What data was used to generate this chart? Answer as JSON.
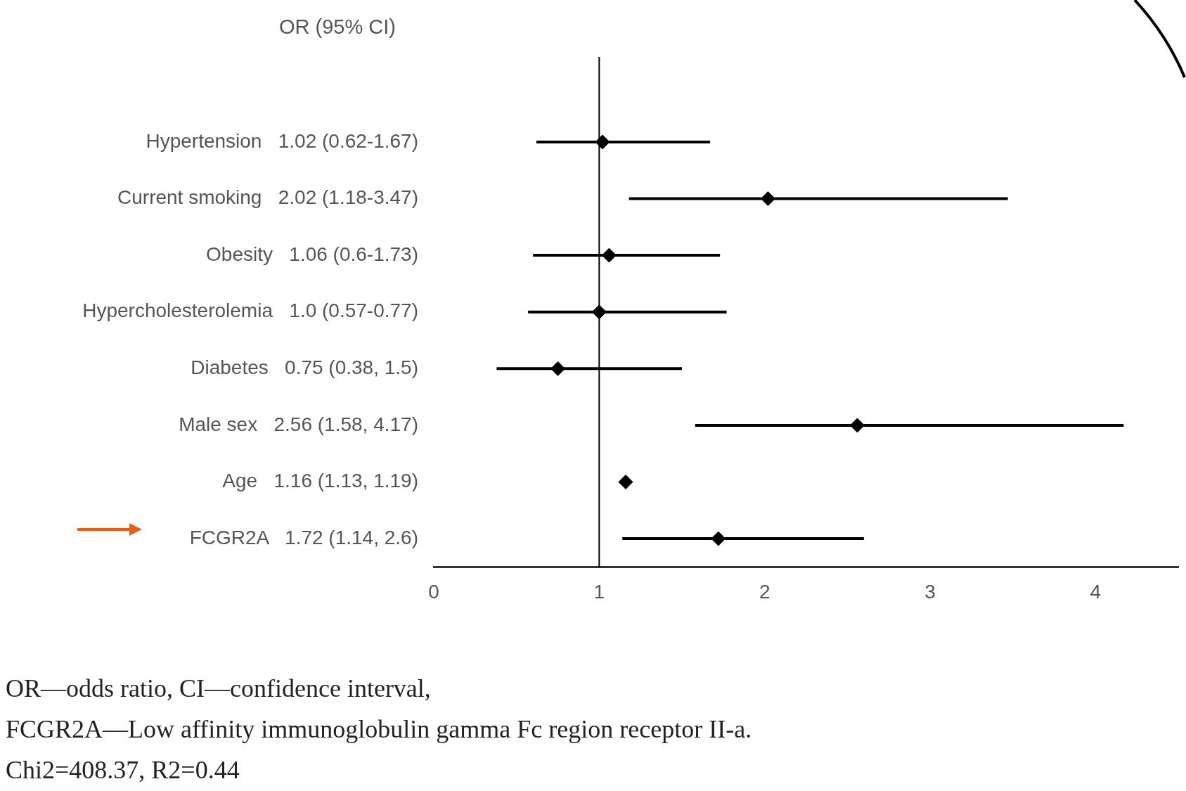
{
  "chart_data": {
    "type": "scatter",
    "orientation": "horizontal",
    "ylabel": "OR (95% CI)",
    "categories": [
      "Hypertension   1.02 (0.62-1.67)",
      "Current smoking   2.02 (1.18-3.47)",
      "Obesity   1.06 (0.6-1.73)",
      "Hypercholesterolemia   1.0 (0.57-0.77)",
      "Diabetes   0.75 (0.38, 1.5)",
      "Male sex   2.56 (1.58, 4.17)",
      "Age   1.16 (1.13, 1.19)",
      "FCGR2A   1.72 (1.14, 2.6)"
    ],
    "values": [
      1.02,
      2.02,
      1.06,
      1.0,
      0.75,
      2.56,
      1.16,
      1.72
    ],
    "errors": [
      [
        0.62,
        1.67
      ],
      [
        1.18,
        3.47
      ],
      [
        0.6,
        1.73
      ],
      [
        0.57,
        1.77
      ],
      [
        0.38,
        1.5
      ],
      [
        1.58,
        4.17
      ],
      [
        1.13,
        1.19
      ],
      [
        1.14,
        2.6
      ]
    ],
    "color": "#000000",
    "marker": "diamond",
    "grid": false,
    "xlim": [
      0,
      4.5
    ],
    "xticks": [
      0,
      1,
      2,
      3,
      4
    ],
    "ref_lines": [
      {
        "axis": "x",
        "value": 1
      }
    ],
    "annotations": [
      "OR—odds ratio, CI—confidence interval,",
      "FCGR2A—Low affinity immunoglobulin gamma Fc region receptor II-a.",
      "Chi2=408.37, R2=0.44"
    ]
  }
}
